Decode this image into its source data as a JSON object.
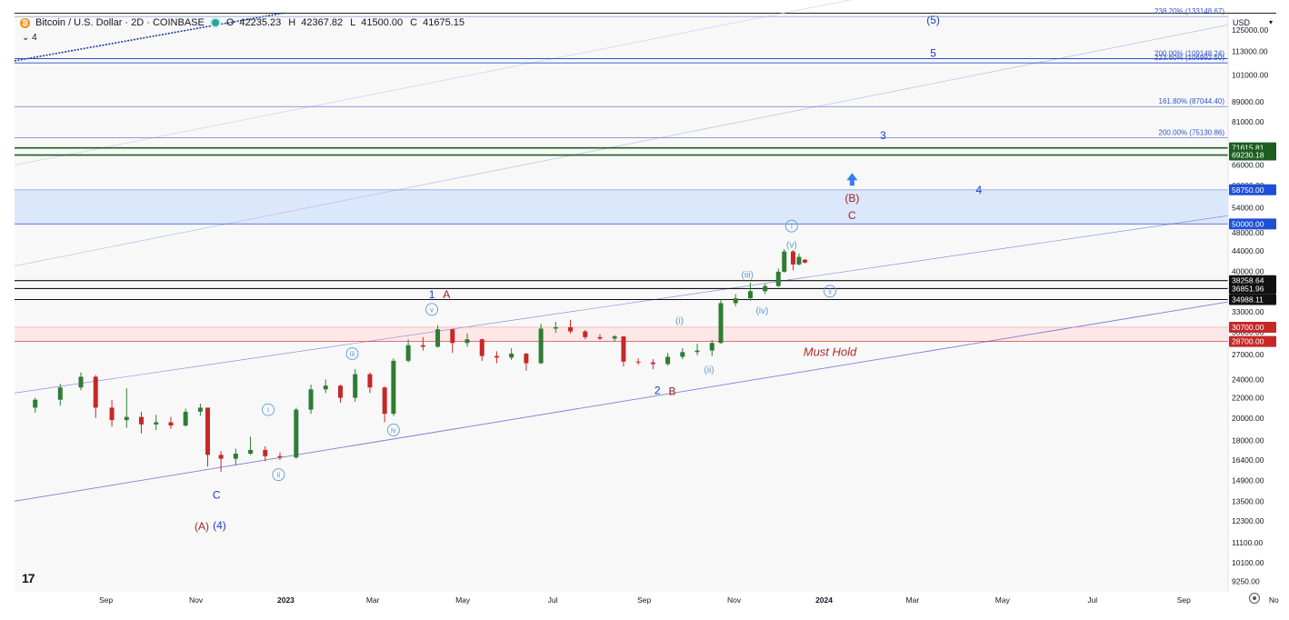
{
  "header": {
    "symbol_title": "Bitcoin / U.S. Dollar · 2D · COINBASE",
    "open_label": "O",
    "open": "42235.23",
    "high_label": "H",
    "high": "42367.82",
    "low_label": "L",
    "low": "41500.00",
    "close_label": "C",
    "close": "41675.15",
    "indicator_count": "4",
    "currency": "USD",
    "logo": "17"
  },
  "colors": {
    "up": "#26a69a",
    "up_candle": "#2e7d32",
    "down": "#c62828",
    "wave_blue": "#1a3fbf",
    "wave_red": "#a32020",
    "wave_light": "#5b9bd5",
    "channel": "#7c7fd6",
    "support_zone": "#fde8e8",
    "resistance_zone": "#dbe7fb"
  },
  "chart_data": {
    "type": "candlestick",
    "scale": "log",
    "ylim": [
      8800,
      135000
    ],
    "x_axis_labels": [
      "Sep",
      "Nov",
      "2023",
      "Mar",
      "May",
      "Jul",
      "Sep",
      "Nov",
      "2024",
      "Mar",
      "May",
      "Jul",
      "Sep",
      "No"
    ],
    "y_axis_labels": [
      "125000.00",
      "113000.00",
      "101000.00",
      "89000.00",
      "81000.00",
      "71000.00",
      "66000.00",
      "60000.00",
      "54000.00",
      "48000.00",
      "44000.00",
      "40000.00",
      "33000.00",
      "30000.00",
      "27000.00",
      "24000.00",
      "22000.00",
      "20000.00",
      "18000.00",
      "16400.00",
      "14900.00",
      "13500.00",
      "12300.00",
      "11100.00",
      "10100.00",
      "9250.00"
    ],
    "price_badges": [
      {
        "value": "71615.81",
        "color": "#1b5e20"
      },
      {
        "value": "69230.18",
        "color": "#1b5e20"
      },
      {
        "value": "58750.00",
        "color": "#1e4fd6"
      },
      {
        "value": "50000.00",
        "color": "#1e4fd6"
      },
      {
        "value": "38258.64",
        "color": "#111111"
      },
      {
        "value": "36851.96",
        "color": "#111111"
      },
      {
        "value": "34988.11",
        "color": "#111111"
      },
      {
        "value": "30700.00",
        "color": "#c62828"
      },
      {
        "value": "28700.00",
        "color": "#c62828"
      }
    ],
    "fib_labels": [
      {
        "text": "238.20% (133148.67)",
        "price": 133148.67
      },
      {
        "text": "223.60% (106992.50)",
        "price": 106992.5
      },
      {
        "text": "200.00% (109148.24)",
        "price": 109148.24
      },
      {
        "text": "161.80% (87044.40)",
        "price": 87044.4
      },
      {
        "text": "200.00% (75130.86)",
        "price": 75130.86
      }
    ],
    "annotation": "Must Hold",
    "wave_labels": [
      {
        "text": "(5)",
        "style": "blue-paren",
        "date": "2024-03-15",
        "price": 131000
      },
      {
        "text": "5",
        "style": "blue",
        "date": "2024-03-15",
        "price": 112000
      },
      {
        "text": "3",
        "style": "blue",
        "date": "2024-02-10",
        "price": 76000
      },
      {
        "text": "4",
        "style": "blue",
        "date": "2024-04-15",
        "price": 58750
      },
      {
        "text": "(B)",
        "style": "red-paren",
        "date": "2024-01-20",
        "price": 56500
      },
      {
        "text": "C",
        "style": "red",
        "date": "2024-01-20",
        "price": 52000
      },
      {
        "text": "1",
        "style": "blue",
        "date": "2023-04-10",
        "price": 35800
      },
      {
        "text": "A",
        "style": "red",
        "date": "2023-04-20",
        "price": 35800
      },
      {
        "text": "2",
        "style": "blue",
        "date": "2023-09-10",
        "price": 22800
      },
      {
        "text": "B",
        "style": "red",
        "date": "2023-09-20",
        "price": 22700
      },
      {
        "text": "C",
        "style": "blue",
        "date": "2022-11-15",
        "price": 13900
      },
      {
        "text": "(A)",
        "style": "red-paren",
        "date": "2022-11-05",
        "price": 12000
      },
      {
        "text": "(4)",
        "style": "blue-paren",
        "date": "2022-11-17",
        "price": 12050
      },
      {
        "text": "(i)",
        "style": "light",
        "date": "2023-09-25",
        "price": 31800
      },
      {
        "text": "(ii)",
        "style": "light",
        "date": "2023-10-15",
        "price": 25200
      },
      {
        "text": "(iii)",
        "style": "light",
        "date": "2023-11-10",
        "price": 39500
      },
      {
        "text": "(iv)",
        "style": "light",
        "date": "2023-11-20",
        "price": 33300
      },
      {
        "text": "(v)",
        "style": "light",
        "date": "2023-12-10",
        "price": 45500
      },
      {
        "text": "i",
        "style": "circle",
        "date": "2022-12-20",
        "price": 20800
      },
      {
        "text": "ii",
        "style": "circle",
        "date": "2022-12-27",
        "price": 15300
      },
      {
        "text": "iii",
        "style": "circle",
        "date": "2023-02-15",
        "price": 27100
      },
      {
        "text": "iv",
        "style": "circle",
        "date": "2023-03-15",
        "price": 18900
      },
      {
        "text": "v",
        "style": "circle",
        "date": "2023-04-10",
        "price": 33400
      },
      {
        "text": "i",
        "style": "circle",
        "date": "2023-12-10",
        "price": 49500
      },
      {
        "text": "ii",
        "style": "circle",
        "date": "2024-01-05",
        "price": 36400
      }
    ],
    "candles": [
      {
        "date": "2022-07-15",
        "o": 21000,
        "h": 22000,
        "l": 20500,
        "c": 21800
      },
      {
        "date": "2022-08-01",
        "o": 21800,
        "h": 23500,
        "l": 21200,
        "c": 23100
      },
      {
        "date": "2022-08-15",
        "o": 23100,
        "h": 24800,
        "l": 22800,
        "c": 24300
      },
      {
        "date": "2022-08-25",
        "o": 24300,
        "h": 24500,
        "l": 20000,
        "c": 21000
      },
      {
        "date": "2022-09-05",
        "o": 21000,
        "h": 21800,
        "l": 19200,
        "c": 19800
      },
      {
        "date": "2022-09-15",
        "o": 19800,
        "h": 23000,
        "l": 19100,
        "c": 20100
      },
      {
        "date": "2022-09-25",
        "o": 20100,
        "h": 20600,
        "l": 18600,
        "c": 19400
      },
      {
        "date": "2022-10-05",
        "o": 19400,
        "h": 20300,
        "l": 18900,
        "c": 19600
      },
      {
        "date": "2022-10-15",
        "o": 19600,
        "h": 20100,
        "l": 19000,
        "c": 19300
      },
      {
        "date": "2022-10-25",
        "o": 19300,
        "h": 20900,
        "l": 19200,
        "c": 20600
      },
      {
        "date": "2022-11-04",
        "o": 20600,
        "h": 21400,
        "l": 20200,
        "c": 21000
      },
      {
        "date": "2022-11-09",
        "o": 21000,
        "h": 21000,
        "l": 15900,
        "c": 16800
      },
      {
        "date": "2022-11-18",
        "o": 16800,
        "h": 17100,
        "l": 15500,
        "c": 16500
      },
      {
        "date": "2022-11-28",
        "o": 16500,
        "h": 17300,
        "l": 16000,
        "c": 16900
      },
      {
        "date": "2022-12-08",
        "o": 16900,
        "h": 18300,
        "l": 16800,
        "c": 17200
      },
      {
        "date": "2022-12-18",
        "o": 17200,
        "h": 17500,
        "l": 16300,
        "c": 16700
      },
      {
        "date": "2022-12-28",
        "o": 16700,
        "h": 17000,
        "l": 16400,
        "c": 16600
      },
      {
        "date": "2023-01-08",
        "o": 16600,
        "h": 21000,
        "l": 16500,
        "c": 20800
      },
      {
        "date": "2023-01-18",
        "o": 20800,
        "h": 23400,
        "l": 20400,
        "c": 22900
      },
      {
        "date": "2023-01-28",
        "o": 22900,
        "h": 24000,
        "l": 22500,
        "c": 23300
      },
      {
        "date": "2023-02-07",
        "o": 23300,
        "h": 23400,
        "l": 21500,
        "c": 22000
      },
      {
        "date": "2023-02-17",
        "o": 22000,
        "h": 25200,
        "l": 21600,
        "c": 24600
      },
      {
        "date": "2023-02-27",
        "o": 24600,
        "h": 24800,
        "l": 22500,
        "c": 23100
      },
      {
        "date": "2023-03-09",
        "o": 23100,
        "h": 23200,
        "l": 19600,
        "c": 20400
      },
      {
        "date": "2023-03-15",
        "o": 20400,
        "h": 26500,
        "l": 20200,
        "c": 26200
      },
      {
        "date": "2023-03-25",
        "o": 26200,
        "h": 29000,
        "l": 26000,
        "c": 28200
      },
      {
        "date": "2023-04-04",
        "o": 28200,
        "h": 29300,
        "l": 27500,
        "c": 28000
      },
      {
        "date": "2023-04-14",
        "o": 28000,
        "h": 31000,
        "l": 27900,
        "c": 30400
      },
      {
        "date": "2023-04-24",
        "o": 30400,
        "h": 30500,
        "l": 27200,
        "c": 28500
      },
      {
        "date": "2023-05-04",
        "o": 28500,
        "h": 29800,
        "l": 28000,
        "c": 29000
      },
      {
        "date": "2023-05-14",
        "o": 29000,
        "h": 29100,
        "l": 26200,
        "c": 26800
      },
      {
        "date": "2023-05-24",
        "o": 26800,
        "h": 27400,
        "l": 25900,
        "c": 26600
      },
      {
        "date": "2023-06-03",
        "o": 26600,
        "h": 27800,
        "l": 26300,
        "c": 27100
      },
      {
        "date": "2023-06-13",
        "o": 27100,
        "h": 27200,
        "l": 25000,
        "c": 25900
      },
      {
        "date": "2023-06-23",
        "o": 25900,
        "h": 31200,
        "l": 25800,
        "c": 30500
      },
      {
        "date": "2023-07-03",
        "o": 30500,
        "h": 31500,
        "l": 29900,
        "c": 30700
      },
      {
        "date": "2023-07-13",
        "o": 30700,
        "h": 31800,
        "l": 29800,
        "c": 30100
      },
      {
        "date": "2023-07-23",
        "o": 30100,
        "h": 30300,
        "l": 29000,
        "c": 29300
      },
      {
        "date": "2023-08-02",
        "o": 29300,
        "h": 29700,
        "l": 28900,
        "c": 29100
      },
      {
        "date": "2023-08-12",
        "o": 29100,
        "h": 29600,
        "l": 28700,
        "c": 29400
      },
      {
        "date": "2023-08-18",
        "o": 29400,
        "h": 29400,
        "l": 25500,
        "c": 26100
      },
      {
        "date": "2023-08-28",
        "o": 26100,
        "h": 26500,
        "l": 25700,
        "c": 26000
      },
      {
        "date": "2023-09-07",
        "o": 26000,
        "h": 26400,
        "l": 25200,
        "c": 25800
      },
      {
        "date": "2023-09-17",
        "o": 25800,
        "h": 27200,
        "l": 25600,
        "c": 26700
      },
      {
        "date": "2023-09-27",
        "o": 26700,
        "h": 27800,
        "l": 26400,
        "c": 27300
      },
      {
        "date": "2023-10-07",
        "o": 27300,
        "h": 28400,
        "l": 26900,
        "c": 27500
      },
      {
        "date": "2023-10-17",
        "o": 27500,
        "h": 28900,
        "l": 26800,
        "c": 28500
      },
      {
        "date": "2023-10-23",
        "o": 28500,
        "h": 35000,
        "l": 28400,
        "c": 34400
      },
      {
        "date": "2023-11-02",
        "o": 34400,
        "h": 35900,
        "l": 33900,
        "c": 35200
      },
      {
        "date": "2023-11-12",
        "o": 35200,
        "h": 37900,
        "l": 34800,
        "c": 36400
      },
      {
        "date": "2023-11-22",
        "o": 36400,
        "h": 37700,
        "l": 35900,
        "c": 37300
      },
      {
        "date": "2023-12-01",
        "o": 37300,
        "h": 40500,
        "l": 37100,
        "c": 39900
      },
      {
        "date": "2023-12-05",
        "o": 39900,
        "h": 44400,
        "l": 39700,
        "c": 43900
      },
      {
        "date": "2023-12-11",
        "o": 43900,
        "h": 44200,
        "l": 40200,
        "c": 41300
      },
      {
        "date": "2023-12-15",
        "o": 41300,
        "h": 43500,
        "l": 41100,
        "c": 42800
      },
      {
        "date": "2023-12-19",
        "o": 42235.23,
        "h": 42367.82,
        "l": 41500,
        "c": 41675.15
      }
    ]
  }
}
